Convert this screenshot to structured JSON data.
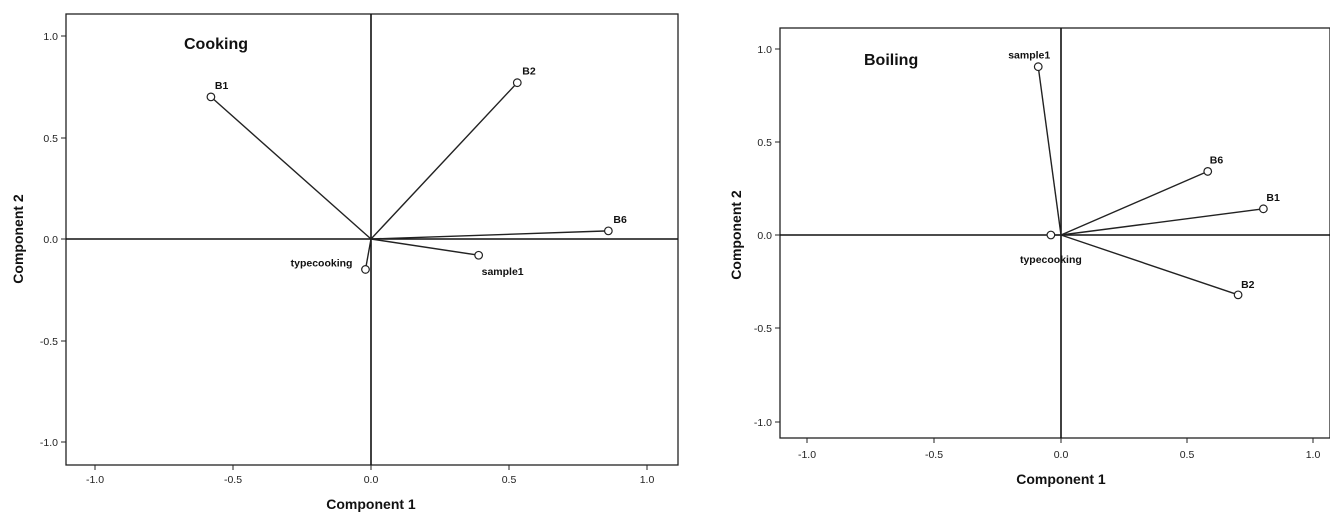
{
  "chart_data": [
    {
      "type": "scatter",
      "title": "Cooking",
      "xlabel": "Component 1",
      "ylabel": "Component 2",
      "xlim": [
        -1.1,
        1.1
      ],
      "ylim": [
        -1.1,
        1.1
      ],
      "xticks": [
        "-1.0",
        "-0.5",
        "0.0",
        "0.5",
        "1.0"
      ],
      "yticks": [
        "1.0",
        "0.5",
        "0.0",
        "-0.5",
        "-1.0"
      ],
      "grid": false,
      "points": [
        {
          "label": "B1",
          "x": -0.58,
          "y": 0.7
        },
        {
          "label": "B2",
          "x": 0.53,
          "y": 0.77
        },
        {
          "label": "B6",
          "x": 0.86,
          "y": 0.04
        },
        {
          "label": "sample1",
          "x": 0.39,
          "y": -0.08
        },
        {
          "label": "typecooking",
          "x": -0.02,
          "y": -0.15
        }
      ]
    },
    {
      "type": "scatter",
      "title": "Boiling",
      "xlabel": "Component 1",
      "ylabel": "Component 2",
      "xlim": [
        -1.1,
        1.1
      ],
      "ylim": [
        -1.1,
        1.1
      ],
      "xticks": [
        "-1.0",
        "-0.5",
        "0.0",
        "0.5",
        "1.0"
      ],
      "yticks": [
        "1.0",
        "0.5",
        "0.0",
        "-0.5",
        "-1.0"
      ],
      "grid": false,
      "points": [
        {
          "label": "sample1",
          "x": -0.09,
          "y": 0.9
        },
        {
          "label": "B6",
          "x": 0.58,
          "y": 0.34
        },
        {
          "label": "B1",
          "x": 0.8,
          "y": 0.14
        },
        {
          "label": "B2",
          "x": 0.7,
          "y": -0.32
        },
        {
          "label": "typecooking",
          "x": -0.04,
          "y": 0.0
        }
      ]
    }
  ]
}
